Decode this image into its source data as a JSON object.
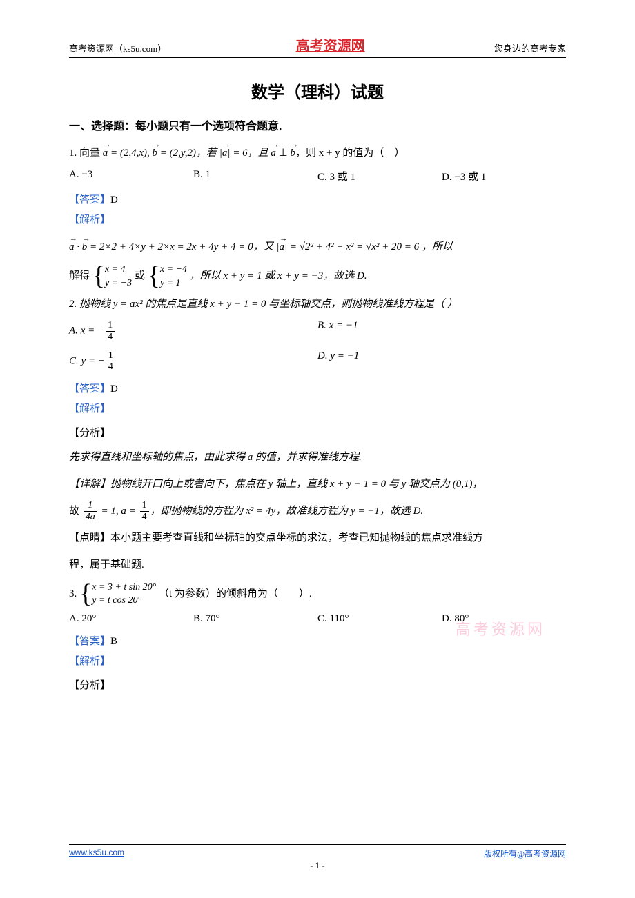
{
  "header": {
    "left": "高考资源网（ks5u.com）",
    "center": "高考资源网",
    "right": "您身边的高考专家"
  },
  "title": "数学（理科）试题",
  "section_label": "一、选择题：每小题只有一个选项符合题意.",
  "q1": {
    "stem_pre": "1. 向量 ",
    "vec_a": "a",
    "eq_a": " = (2,4,x), ",
    "vec_b": "b",
    "eq_b": " = (2,y,2)，若 |",
    "abs_a": "a",
    "after_abs": "| = 6，且 ",
    "a_perp_b_a": "a",
    "perp": " ⊥ ",
    "a_perp_b_b": "b",
    "tail": "，则 x + y 的值为（　）",
    "opts": {
      "A": "A.  −3",
      "B": "B. 1",
      "C": "C. 3 或 1",
      "D": "D.  −3 或 1"
    },
    "answer_label": "【答案】",
    "answer": "D",
    "analysis_label": "【解析】",
    "line1_pre": " = 2×2 + 4×y + 2×x = 2x + 4y + 4 = 0，又 |",
    "line1_sqrt1": "2² + 4² + x²",
    "line1_mid": " = ",
    "line1_sqrt2": "x² + 20",
    "line1_tail": " = 6 ，所以",
    "line2_pre": "解得 ",
    "sys1_l1": "x = 4",
    "sys1_l2": "y = −3",
    "or": " 或 ",
    "sys2_l1": "x = −4",
    "sys2_l2": "y = 1",
    "line2_mid": " ，所以 x + y = 1 或 x + y = −3，故选 D."
  },
  "q2": {
    "stem": "2. 抛物线 y = ax² 的焦点是直线 x + y − 1 = 0 与坐标轴交点，则抛物线准线方程是（  ）",
    "optA_pre": "A.  x = −",
    "optB": "B.  x = −1",
    "optC_pre": "C.  y = −",
    "optD": "D.  y = −1",
    "frac_num": "1",
    "frac_den": "4",
    "answer_label": "【答案】",
    "answer": "D",
    "analysis_label": "【解析】",
    "sub1": "【分析】",
    "line_a": "先求得直线和坐标轴的焦点，由此求得 a 的值，并求得准线方程.",
    "sub2_pre": "【详解】抛物线开口向上或者向下，焦点在 y 轴上，直线 x + y − 1 = 0 与 y 轴交点为 (0,1)，",
    "line_b_pre": "故 ",
    "frac2_num": "1",
    "frac2_den": "4a",
    "line_b_mid": " = 1, a = ",
    "line_b_tail": "，即抛物线的方程为 x² = 4y，故准线方程为 y = −1，故选 D.",
    "sub3": "【点睛】本小题主要考查直线和坐标轴的交点坐标的求法，考查已知抛物线的焦点求准线方",
    "sub3b": "程，属于基础题."
  },
  "q3": {
    "num": "3. ",
    "sys_l1": "x = 3 + t sin 20°",
    "sys_l2": "y = t cos 20°",
    "tail": "（t 为参数）的倾斜角为（　　）.",
    "opts": {
      "A": "A.  20°",
      "B": "B.  70°",
      "C": "C.  110°",
      "D": "D.  80°"
    },
    "answer_label": "【答案】",
    "answer": "B",
    "analysis_label": "【解析】",
    "sub1": "【分析】"
  },
  "watermark": "高考资源网",
  "footer": {
    "left": "www.ks5u.com",
    "right": "版权所有@高考资源网",
    "page": "- 1 -"
  },
  "colors": {
    "brand_red": "#d9242b",
    "link_blue": "#2860c5",
    "hyperlink": "#1155cc",
    "watermark": "#f13a7a"
  }
}
